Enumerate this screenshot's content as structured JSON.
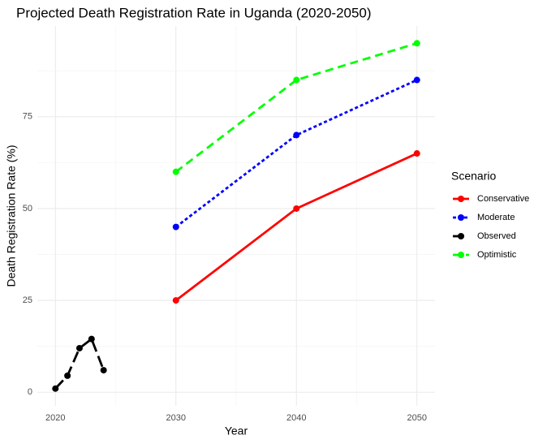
{
  "chart_data": {
    "type": "line",
    "title": "Projected Death Registration Rate in Uganda (2020-2050)",
    "x_label": "Year",
    "y_label": "Death Registration Rate (%)",
    "legend_title": "Scenario",
    "series": [
      {
        "name": "Conservative",
        "color": "#ff0000",
        "dash": "solid",
        "x": [
          2030,
          2040,
          2050
        ],
        "values": [
          25,
          50,
          65
        ]
      },
      {
        "name": "Moderate",
        "color": "#0000ff",
        "dash": "dotted",
        "x": [
          2030,
          2040,
          2050
        ],
        "values": [
          45,
          70,
          85
        ]
      },
      {
        "name": "Observed",
        "color": "#000000",
        "dash": "longdash",
        "x": [
          2020,
          2021,
          2022,
          2023,
          2024
        ],
        "values": [
          1,
          4.5,
          12,
          14.5,
          6
        ]
      },
      {
        "name": "Optimistic",
        "color": "#00ff00",
        "dash": "dashed",
        "x": [
          2030,
          2040,
          2050
        ],
        "values": [
          60,
          85,
          95
        ]
      }
    ],
    "xlim": [
      2018.5,
      2051.5
    ],
    "xticks": [
      2020,
      2030,
      2040,
      2050
    ],
    "ylim": [
      -3.7,
      99.7
    ],
    "yticks": [
      0,
      25,
      50,
      75
    ],
    "grid": true,
    "legend_position": "right"
  }
}
